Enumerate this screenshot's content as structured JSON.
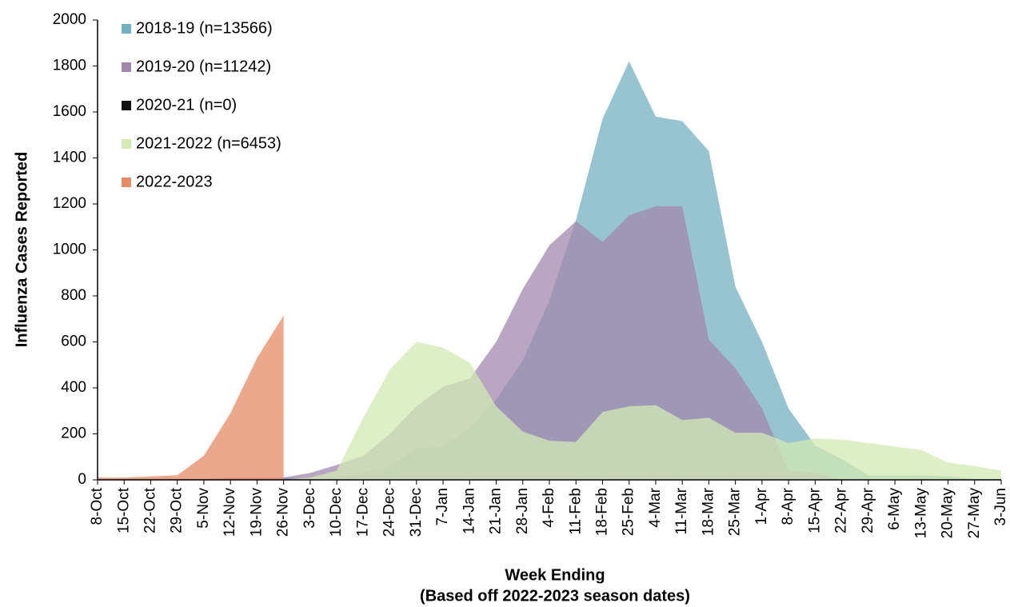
{
  "chart_data": {
    "type": "area",
    "ylabel": "Influenza Cases Reported",
    "xlabel": [
      "Week Ending",
      "(Based off 2022-2023 season dates)"
    ],
    "categories": [
      "8-Oct",
      "15-Oct",
      "22-Oct",
      "29-Oct",
      "5-Nov",
      "12-Nov",
      "19-Nov",
      "26-Nov",
      "3-Dec",
      "10-Dec",
      "17-Dec",
      "24-Dec",
      "31-Dec",
      "7-Jan",
      "14-Jan",
      "21-Jan",
      "28-Jan",
      "4-Feb",
      "11-Feb",
      "18-Feb",
      "25-Feb",
      "4-Mar",
      "11-Mar",
      "18-Mar",
      "25-Mar",
      "1-Apr",
      "8-Apr",
      "15-Apr",
      "22-Apr",
      "29-Apr",
      "6-May",
      "13-May",
      "20-May",
      "27-May",
      "3-Jun"
    ],
    "ylim": [
      0,
      2000
    ],
    "yticks": [
      0,
      200,
      400,
      600,
      800,
      1000,
      1200,
      1400,
      1600,
      1800,
      2000
    ],
    "legend": "upper left",
    "series": [
      {
        "name": "2018-19 (n=13566)",
        "color": "#74b0c0",
        "values": [
          5,
          5,
          5,
          5,
          5,
          5,
          5,
          10,
          5,
          10,
          30,
          55,
          140,
          145,
          225,
          350,
          520,
          780,
          1130,
          1570,
          1820,
          1580,
          1560,
          1430,
          840,
          600,
          310,
          150,
          90,
          20,
          20,
          20,
          15,
          5,
          5
        ]
      },
      {
        "name": "2019-20 (n=11242)",
        "color": "#a088ad",
        "values": [
          5,
          5,
          5,
          5,
          5,
          10,
          10,
          10,
          30,
          65,
          105,
          200,
          320,
          405,
          440,
          600,
          830,
          1020,
          1125,
          1035,
          1150,
          1190,
          1190,
          610,
          485,
          310,
          40,
          30,
          0,
          0,
          0,
          0,
          0,
          0,
          0
        ]
      },
      {
        "name": "2020-21 (n=0)",
        "color": "#111111",
        "values": [
          0,
          0,
          0,
          0,
          0,
          0,
          0,
          0,
          0,
          0,
          0,
          0,
          0,
          0,
          0,
          0,
          0,
          0,
          0,
          0,
          0,
          0,
          0,
          0,
          0,
          0,
          0,
          0,
          0,
          0,
          0,
          0,
          0,
          0,
          0
        ]
      },
      {
        "name": "2021-2022 (n=6453)",
        "color": "#d3eab4",
        "values": [
          0,
          0,
          0,
          0,
          0,
          0,
          0,
          0,
          10,
          40,
          270,
          480,
          600,
          575,
          510,
          320,
          210,
          170,
          165,
          295,
          320,
          325,
          260,
          270,
          205,
          205,
          160,
          180,
          175,
          160,
          145,
          130,
          75,
          60,
          40
        ]
      },
      {
        "name": "2022-2023",
        "color": "#e58b65",
        "values": [
          10,
          10,
          15,
          20,
          105,
          290,
          530,
          715,
          null,
          null,
          null,
          null,
          null,
          null,
          null,
          null,
          null,
          null,
          null,
          null,
          null,
          null,
          null,
          null,
          null,
          null,
          null,
          null,
          null,
          null,
          null,
          null,
          null,
          null,
          null
        ]
      }
    ]
  }
}
